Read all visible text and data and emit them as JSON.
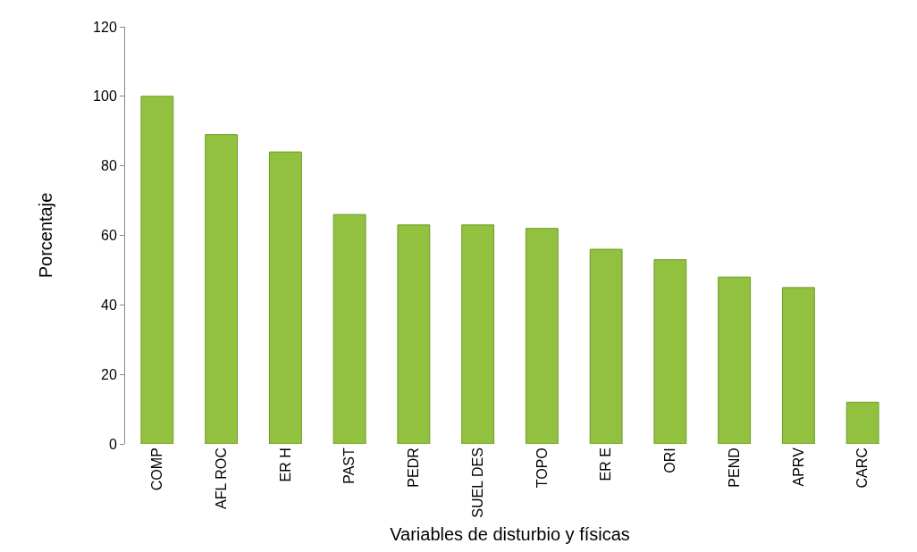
{
  "chart_data": {
    "type": "bar",
    "xlabel": "Variables de disturbio y físicas",
    "ylabel": "Porcentaje",
    "categories": [
      "COMP",
      "AFL ROC",
      "ER H",
      "PAST",
      "PEDR",
      "SUEL DES",
      "TOPO",
      "ER E",
      "ORI",
      "PEND",
      "APRV",
      "CARC"
    ],
    "values": [
      100,
      89,
      84,
      66,
      63,
      63,
      62,
      56,
      53,
      48,
      45,
      12
    ],
    "color": "#92c13f",
    "ylim": [
      0,
      120
    ],
    "yticks": [
      0,
      20,
      40,
      60,
      80,
      100,
      120
    ],
    "grid": false
  }
}
